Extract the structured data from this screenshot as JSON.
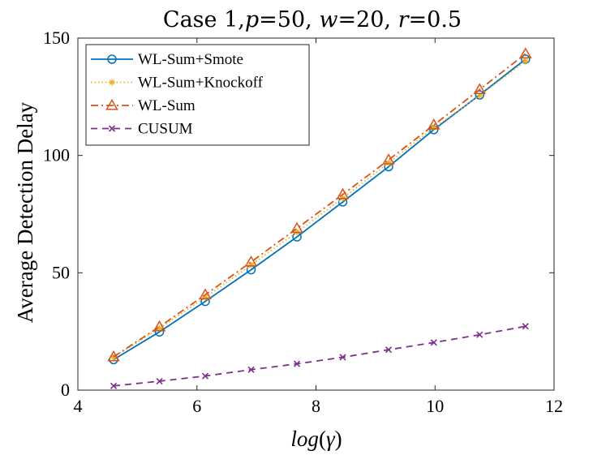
{
  "chart_data": {
    "type": "line",
    "title": "Case 1,p=50, w=20, r=0.5",
    "title_parts": {
      "prefix": "Case 1,",
      "p_var": "p",
      "p_val": "=50, ",
      "w_var": "w",
      "w_val": "=20, ",
      "r_var": "r",
      "r_val": "=0.5"
    },
    "xlabel": "log(γ)",
    "xlabel_parts": {
      "fn": "log",
      "open": "(",
      "sym": "γ",
      "close": ")"
    },
    "ylabel": "Average Detection Delay",
    "xlim": [
      4,
      12
    ],
    "ylim": [
      0,
      150
    ],
    "xticks": [
      4,
      6,
      8,
      10,
      12
    ],
    "yticks": [
      0,
      50,
      100,
      150
    ],
    "legend_position": "top-left",
    "x": [
      4.6,
      5.37,
      6.14,
      6.91,
      7.68,
      8.45,
      9.22,
      9.98,
      10.75,
      11.52
    ],
    "series": [
      {
        "name": "WL-Sum+Smote",
        "color": "#0072BD",
        "line": "solid",
        "marker": "circle",
        "values": [
          13,
          24.8,
          37.8,
          51.3,
          65.3,
          80.2,
          95.2,
          111,
          125.8,
          141
        ]
      },
      {
        "name": "WL-Sum+Knockoff",
        "color": "#EDB120",
        "line": "dotted",
        "marker": "star",
        "values": [
          14,
          26.3,
          39.5,
          53.3,
          67.3,
          81.8,
          96.8,
          111.8,
          125.5,
          140.2
        ]
      },
      {
        "name": "WL-Sum",
        "color": "#D95319",
        "line": "dashdot",
        "marker": "triangle",
        "values": [
          14.2,
          27,
          40.6,
          54.6,
          68.9,
          83.4,
          98.1,
          113,
          128.1,
          143.3
        ]
      },
      {
        "name": "CUSUM",
        "color": "#7E2F8E",
        "line": "dashed",
        "marker": "x",
        "values": [
          1.8,
          3.8,
          6,
          8.7,
          11.2,
          14,
          17.2,
          20.3,
          23.6,
          27.2
        ]
      }
    ]
  }
}
